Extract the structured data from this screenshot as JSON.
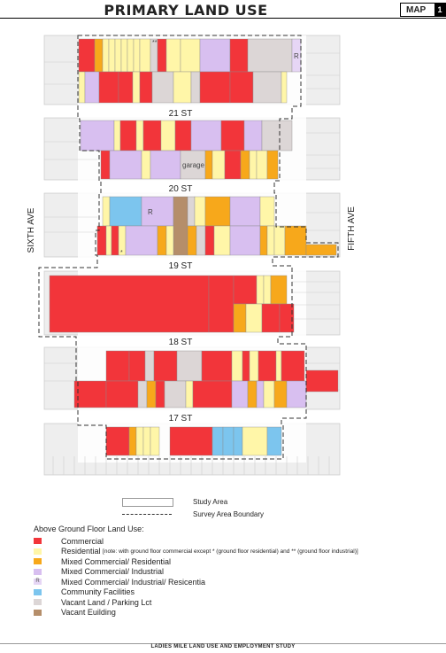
{
  "header": {
    "title": "PRIMARY LAND USE",
    "map_label": "MAP",
    "map_number": "1"
  },
  "streets": {
    "st21": "21 ST",
    "st20": "20 ST",
    "st19": "19 ST",
    "st18": "18 ST",
    "st17": "17 ST",
    "sixth_ave": "SIXTH AVE",
    "fifth_ave": "FIFTH AVE"
  },
  "map_labels": {
    "garage": "garage",
    "r": "R",
    "star": "*",
    "double_star": "**"
  },
  "key": {
    "study_area": "Study Area",
    "survey_boundary": "Survey Area Boundary"
  },
  "legend": {
    "heading": "Above Ground Floor Land Use:",
    "items": [
      {
        "label": "Commercial",
        "color": "#f2353a"
      },
      {
        "label": "Residential",
        "note": "[note: with ground floor commercial except * (ground floor residential) and ** (ground floor industrial)]",
        "color": "#fff6a8"
      },
      {
        "label": "Mixed Commercial/ Residential",
        "color": "#f7a81b"
      },
      {
        "label": "Mixed Commercial/ Industrial",
        "color": "#d8bff0"
      },
      {
        "label": "Mixed Commercial/ Industrial/ Resicentia",
        "marker": "R",
        "color": "#e6d6f5"
      },
      {
        "label": "Community Facilities",
        "color": "#7cc5ee"
      },
      {
        "label": "Vacant Land / Parking Lct",
        "color": "#dcd6d6"
      },
      {
        "label": "Vacant Euilding",
        "color": "#b58e6a"
      }
    ]
  },
  "footer": {
    "text": "LADIES MILE LAND USE AND EMPLOYMENT STUDY"
  },
  "colors": {
    "commercial": "#f2353a",
    "residential": "#fff6a8",
    "mixed_res": "#f7a81b",
    "mixed_ind": "#d8bff0",
    "community": "#7cc5ee",
    "vacant": "#dcd6d6",
    "vacant_bldg": "#b58e6a",
    "block_bg": "#eeeeee",
    "lot_line": "#cfcfcf"
  }
}
